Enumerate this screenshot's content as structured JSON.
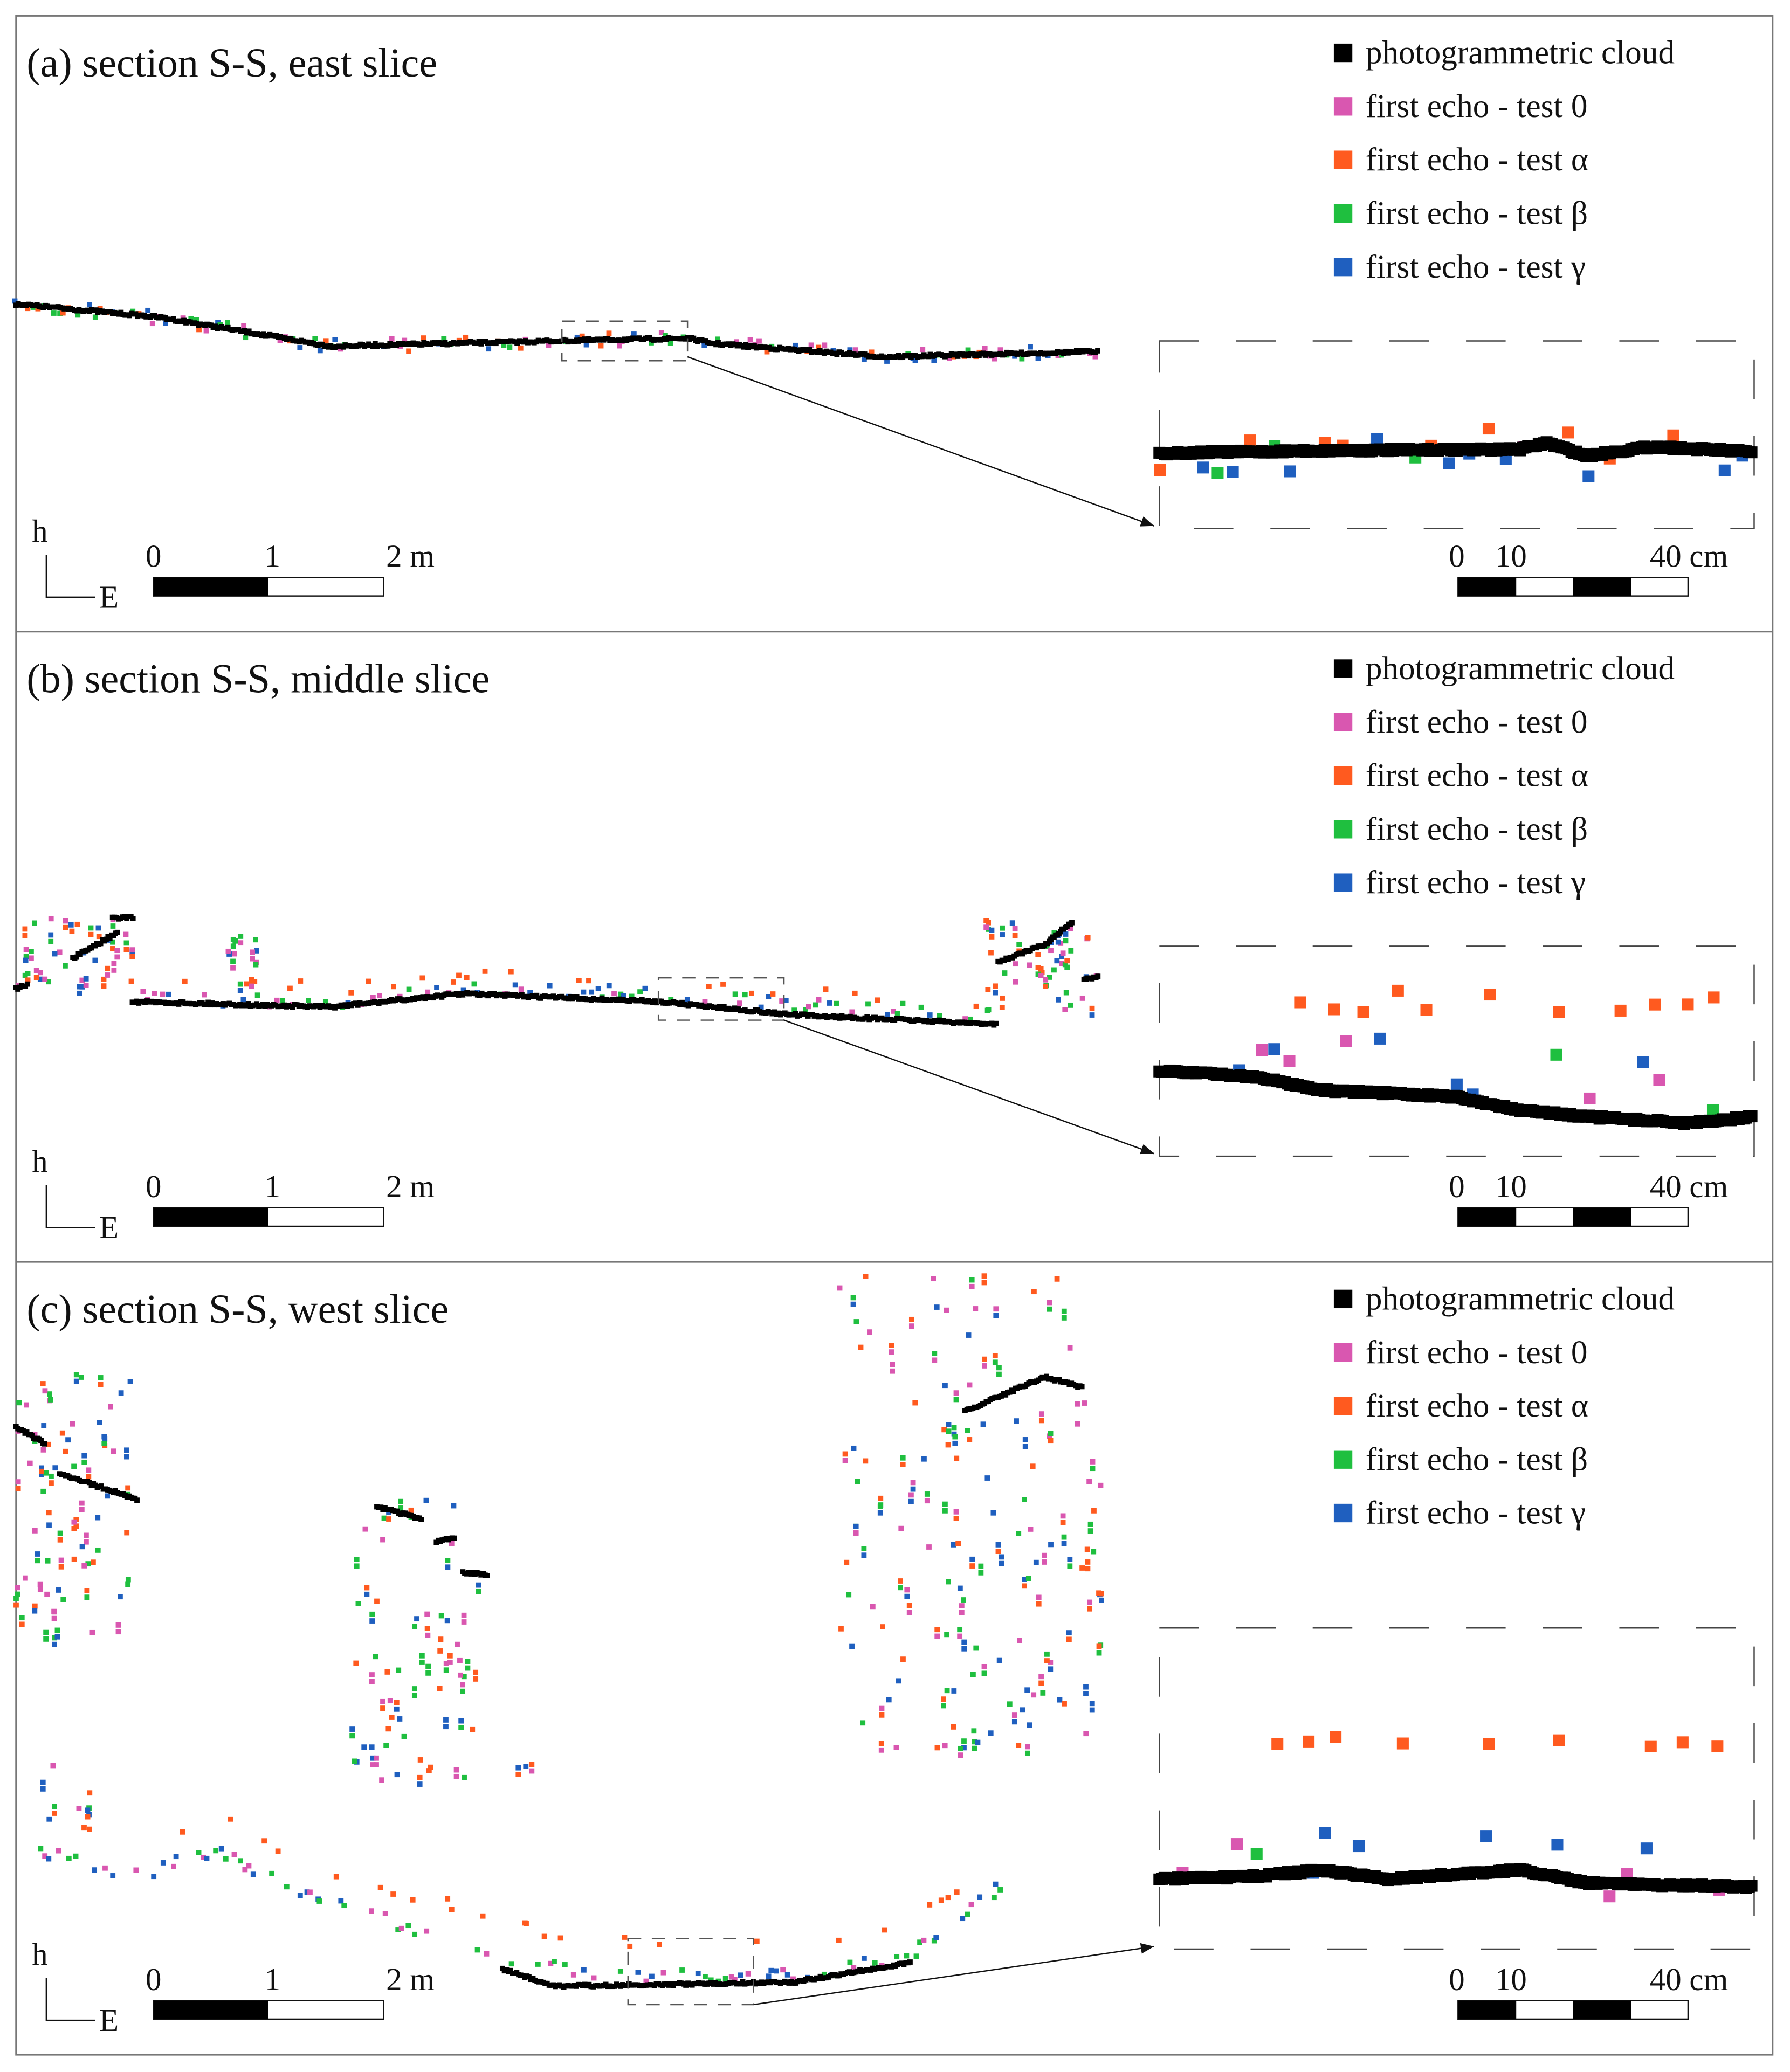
{
  "panels": [
    {
      "title": "(a) section S-S, east slice",
      "legend": [
        {
          "name": "photogrammetric cloud",
          "color": "#000000"
        },
        {
          "name": "first echo - test 0",
          "color": "#d957b0"
        },
        {
          "name": "first echo - test α",
          "color": "#ff5a1f"
        },
        {
          "name": "first echo - test β",
          "color": "#1fbf3f"
        },
        {
          "name": "first echo - test γ",
          "color": "#1f5fbf"
        }
      ],
      "axis": {
        "h": "h",
        "e": "E"
      },
      "scale": [
        "0",
        "1",
        "2 m"
      ],
      "inset_scale": [
        "0",
        "10",
        "40 cm"
      ]
    },
    {
      "title": "(b) section S-S, middle slice",
      "legend": [
        {
          "name": "photogrammetric cloud",
          "color": "#000000"
        },
        {
          "name": "first echo - test 0",
          "color": "#d957b0"
        },
        {
          "name": "first echo - test α",
          "color": "#ff5a1f"
        },
        {
          "name": "first echo - test β",
          "color": "#1fbf3f"
        },
        {
          "name": "first echo - test γ",
          "color": "#1f5fbf"
        }
      ],
      "axis": {
        "h": "h",
        "e": "E"
      },
      "scale": [
        "0",
        "1",
        "2 m"
      ],
      "inset_scale": [
        "0",
        "10",
        "40 cm"
      ]
    },
    {
      "title": "(c) section S-S, west slice",
      "legend": [
        {
          "name": "photogrammetric cloud",
          "color": "#000000"
        },
        {
          "name": "first echo - test 0",
          "color": "#d957b0"
        },
        {
          "name": "first echo - test α",
          "color": "#ff5a1f"
        },
        {
          "name": "first echo - test β",
          "color": "#1fbf3f"
        },
        {
          "name": "first echo - test γ",
          "color": "#1f5fbf"
        }
      ],
      "axis": {
        "h": "h",
        "e": "E"
      },
      "scale": [
        "0",
        "1",
        "2 m"
      ],
      "inset_scale": [
        "0",
        "10",
        "40 cm"
      ]
    }
  ]
}
